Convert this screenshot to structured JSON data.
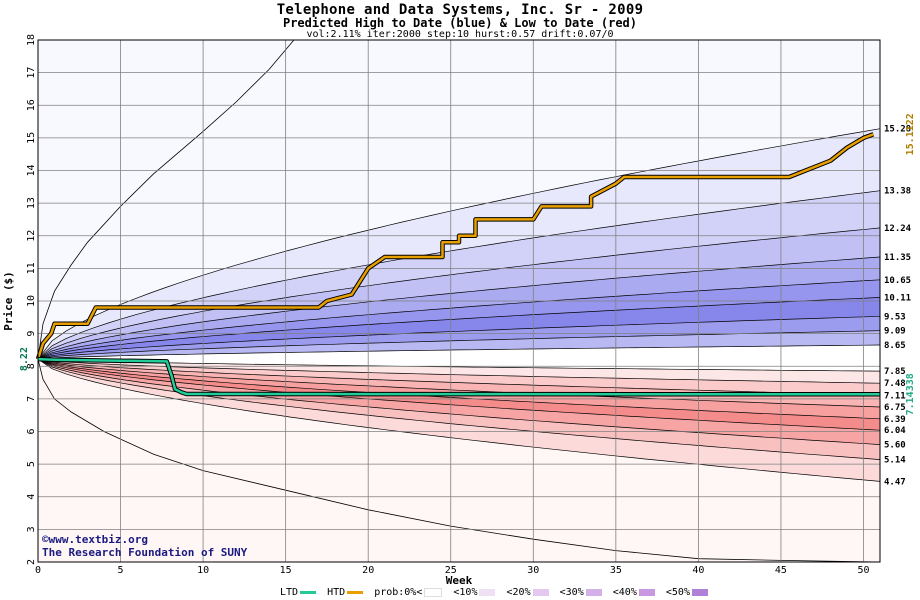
{
  "header": {
    "title": "Telephone and Data Systems, Inc. Sr - 2009",
    "subtitle": "Predicted High to Date (blue) &  Low to Date (red)",
    "params": "vol:2.11% iter:2000 step:10 hurst:0.57 drift:0.07/0"
  },
  "credits": {
    "line1": "©www.textbiz.org",
    "line2": "The Research Foundation of SUNY"
  },
  "legend": {
    "ltd": "LTD",
    "htd": "HTD",
    "prob": "prob:0%<",
    "b10": "<10%",
    "b20": "<20%",
    "b30": "<30%",
    "b40": "<40%",
    "b50": "<50%"
  },
  "colors": {
    "ltd_line": "#22cc99",
    "htd_line": "#e8a000",
    "blue_bands": [
      "#f5f5ff",
      "#e2e2fb",
      "#cacaf6",
      "#b4b4f2",
      "#9c9cee",
      "#8080ea"
    ],
    "red_bands": [
      "#fff4f4",
      "#fde0e0",
      "#fbc8c8",
      "#f9b0b0",
      "#f69898",
      "#f47c7c"
    ],
    "grid": "#808080"
  },
  "chart_data": {
    "type": "line",
    "xlabel": "Week",
    "ylabel": "Price ($)",
    "xlim": [
      0,
      51
    ],
    "ylim": [
      2,
      18
    ],
    "xticks": [
      0,
      5,
      10,
      15,
      20,
      25,
      30,
      35,
      40,
      45,
      50
    ],
    "yticks": [
      2,
      3,
      4,
      5,
      6,
      7,
      8,
      9,
      10,
      11,
      12,
      13,
      14,
      15,
      16,
      17,
      18
    ],
    "start_price": 8.22,
    "start_label": "8.22",
    "upper_quantiles": [
      {
        "label": "15.28",
        "end": 15.28
      },
      {
        "label": "13.38",
        "end": 13.38
      },
      {
        "label": "12.24",
        "end": 12.24
      },
      {
        "label": "11.35",
        "end": 11.35
      },
      {
        "label": "10.65",
        "end": 10.65
      },
      {
        "label": "10.11",
        "end": 10.11
      },
      {
        "label": "9.53",
        "end": 9.53
      },
      {
        "label": "9.09",
        "end": 9.09
      },
      {
        "label": "8.65",
        "end": 8.65
      }
    ],
    "lower_quantiles": [
      {
        "label": "7.85",
        "end": 7.85
      },
      {
        "label": "7.48",
        "end": 7.48
      },
      {
        "label": "7.11",
        "end": 7.11
      },
      {
        "label": "6.75",
        "end": 6.75
      },
      {
        "label": "6.39",
        "end": 6.39
      },
      {
        "label": "6.04",
        "end": 6.04
      },
      {
        "label": "5.60",
        "end": 5.6
      },
      {
        "label": "5.14",
        "end": 5.14
      },
      {
        "label": "4.47",
        "end": 4.47
      }
    ],
    "outer_upper": [
      [
        0,
        8.22
      ],
      [
        0.3,
        9.3
      ],
      [
        1,
        10.3
      ],
      [
        2,
        11.1
      ],
      [
        3,
        11.8
      ],
      [
        5,
        12.9
      ],
      [
        7,
        13.9
      ],
      [
        10,
        15.2
      ],
      [
        12,
        16.1
      ],
      [
        14,
        17.1
      ],
      [
        15.5,
        18
      ]
    ],
    "outer_lower": [
      [
        0,
        8.22
      ],
      [
        0.3,
        7.6
      ],
      [
        1,
        7.0
      ],
      [
        2,
        6.6
      ],
      [
        4,
        6.0
      ],
      [
        7,
        5.3
      ],
      [
        10,
        4.8
      ],
      [
        15,
        4.2
      ],
      [
        20,
        3.6
      ],
      [
        25,
        3.1
      ],
      [
        30,
        2.7
      ],
      [
        35,
        2.35
      ],
      [
        40,
        2.1
      ],
      [
        45,
        2.05
      ],
      [
        51,
        2.0
      ]
    ],
    "series": [
      {
        "name": "HTD",
        "points": [
          [
            0,
            8.22
          ],
          [
            0.3,
            8.7
          ],
          [
            0.8,
            9.0
          ],
          [
            1,
            9.3
          ],
          [
            3,
            9.3
          ],
          [
            3.5,
            9.8
          ],
          [
            17,
            9.8
          ],
          [
            17.5,
            10.0
          ],
          [
            19,
            10.2
          ],
          [
            20,
            11.0
          ],
          [
            21,
            11.35
          ],
          [
            24.5,
            11.35
          ],
          [
            24.5,
            11.8
          ],
          [
            25.5,
            11.8
          ],
          [
            25.5,
            12.0
          ],
          [
            26.5,
            12.0
          ],
          [
            26.5,
            12.5
          ],
          [
            30,
            12.5
          ],
          [
            30.5,
            12.9
          ],
          [
            33.5,
            12.9
          ],
          [
            33.5,
            13.2
          ],
          [
            35,
            13.6
          ],
          [
            35.5,
            13.8
          ],
          [
            45.5,
            13.8
          ],
          [
            47,
            14.1
          ],
          [
            48,
            14.3
          ],
          [
            49,
            14.7
          ],
          [
            50,
            15.0
          ],
          [
            50.6,
            15.11
          ]
        ]
      },
      {
        "name": "LTD",
        "points": [
          [
            0,
            8.22
          ],
          [
            1,
            8.2
          ],
          [
            7.8,
            8.15
          ],
          [
            8.1,
            7.7
          ],
          [
            8.3,
            7.3
          ],
          [
            8.7,
            7.2
          ],
          [
            9.0,
            7.15
          ],
          [
            51,
            7.14
          ]
        ]
      }
    ],
    "end_labels": [
      {
        "name": "HTD",
        "label": "15.1122",
        "value": 15.11
      },
      {
        "name": "LTD",
        "label": "7.14338",
        "value": 7.14
      }
    ]
  }
}
